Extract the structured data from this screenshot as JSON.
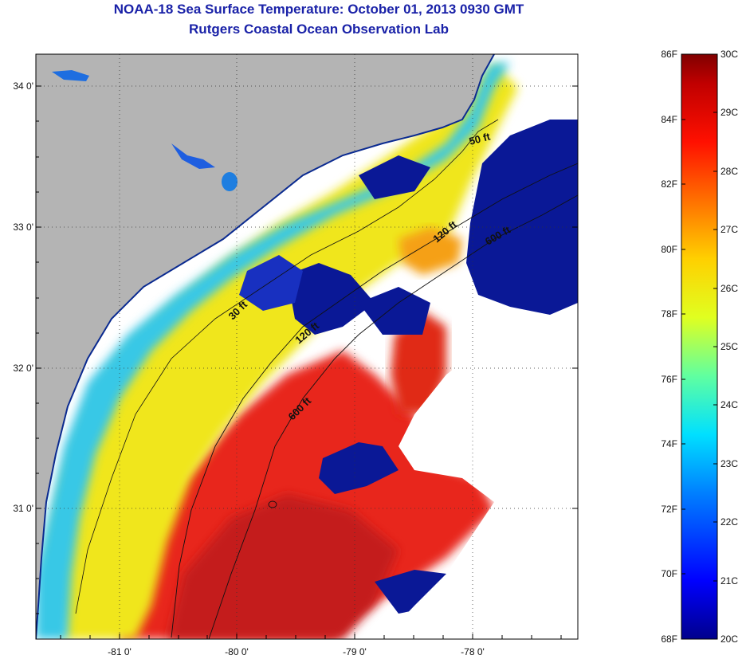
{
  "title": "NOAA-18 Sea Surface Temperature:  October 01, 2013 0930 GMT",
  "subtitle": "Rutgers Coastal Ocean Observation Lab",
  "lat_labels": [
    "34 0'",
    "33 0'",
    "32 0'",
    "31 0'"
  ],
  "lon_labels": [
    "-81 0'",
    "-80 0'",
    "-79 0'",
    "-78 0'"
  ],
  "contour_labels": [
    "50 ft",
    "120 ft",
    "600 ft",
    "30 ft",
    "120 ft",
    "600 ft"
  ],
  "colorbar": {
    "f_labels": [
      "86F",
      "84F",
      "82F",
      "80F",
      "78F",
      "76F",
      "74F",
      "72F",
      "70F",
      "68F"
    ],
    "c_labels": [
      "30C",
      "29C",
      "28C",
      "27C",
      "26C",
      "25C",
      "24C",
      "23C",
      "22C",
      "21C",
      "20C"
    ]
  },
  "colors": {
    "land": "#b4b4b4",
    "cold": "#0a1896",
    "cloud": "#ffffff",
    "title": "#1a22a8"
  }
}
